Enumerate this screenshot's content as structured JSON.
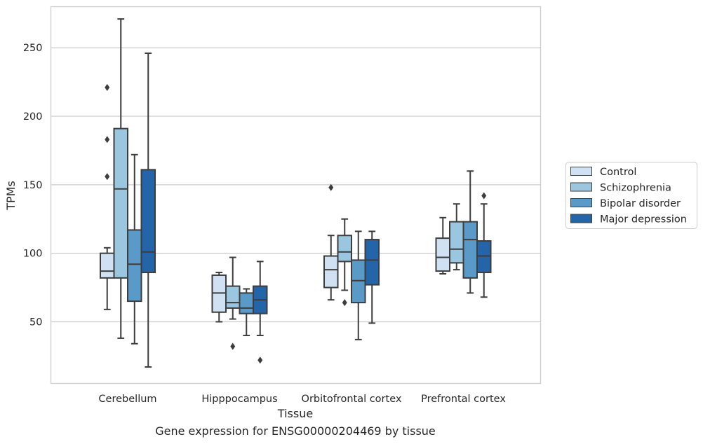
{
  "caption": "Gene expression for ENSG00000204469 by tissue",
  "chart_data": {
    "type": "box",
    "xlabel": "Tissue",
    "ylabel": "TPMs",
    "ylim": [
      5,
      280
    ],
    "yticks": [
      50,
      100,
      150,
      200,
      250
    ],
    "grid": "horizontal",
    "legend_position": "right",
    "categories": [
      "Cerebellum",
      "Hipppocampus",
      "Orbitofrontal cortex",
      "Prefrontal cortex"
    ],
    "series": [
      {
        "name": "Control",
        "color": "#cfe1f2",
        "boxes": [
          {
            "whislo": 59,
            "q1": 82,
            "med": 87,
            "q3": 100,
            "whishi": 104,
            "fliers": [
              156,
              183,
              221
            ]
          },
          {
            "whislo": 50,
            "q1": 57,
            "med": 71,
            "q3": 84,
            "whishi": 86,
            "fliers": []
          },
          {
            "whislo": 66,
            "q1": 75,
            "med": 88,
            "q3": 98,
            "whishi": 113,
            "fliers": [
              148
            ]
          },
          {
            "whislo": 85,
            "q1": 87,
            "med": 97,
            "q3": 111,
            "whishi": 126,
            "fliers": []
          }
        ]
      },
      {
        "name": "Schizophrenia",
        "color": "#9ac6e0",
        "boxes": [
          {
            "whislo": 38,
            "q1": 82,
            "med": 147,
            "q3": 191,
            "whishi": 271,
            "fliers": []
          },
          {
            "whislo": 52,
            "q1": 60,
            "med": 64,
            "q3": 76,
            "whishi": 97,
            "fliers": [
              32
            ]
          },
          {
            "whislo": 73,
            "q1": 94,
            "med": 101,
            "q3": 113,
            "whishi": 125,
            "fliers": [
              64
            ]
          },
          {
            "whislo": 88,
            "q1": 93,
            "med": 103,
            "q3": 123,
            "whishi": 136,
            "fliers": []
          }
        ]
      },
      {
        "name": "Bipolar disorder",
        "color": "#5a9ac8",
        "boxes": [
          {
            "whislo": 34,
            "q1": 65,
            "med": 92,
            "q3": 117,
            "whishi": 172,
            "fliers": []
          },
          {
            "whislo": 40,
            "q1": 56,
            "med": 60,
            "q3": 71,
            "whishi": 74,
            "fliers": []
          },
          {
            "whislo": 37,
            "q1": 64,
            "med": 80,
            "q3": 95,
            "whishi": 116,
            "fliers": []
          },
          {
            "whislo": 71,
            "q1": 82,
            "med": 110,
            "q3": 123,
            "whishi": 160,
            "fliers": []
          }
        ]
      },
      {
        "name": "Major depression",
        "color": "#2464a8",
        "boxes": [
          {
            "whislo": 17,
            "q1": 86,
            "med": 101,
            "q3": 161,
            "whishi": 246,
            "fliers": []
          },
          {
            "whislo": 40,
            "q1": 56,
            "med": 66,
            "q3": 76,
            "whishi": 94,
            "fliers": [
              22
            ]
          },
          {
            "whislo": 49,
            "q1": 77,
            "med": 95,
            "q3": 110,
            "whishi": 116,
            "fliers": []
          },
          {
            "whislo": 68,
            "q1": 86,
            "med": 98,
            "q3": 109,
            "whishi": 136,
            "fliers": [
              142
            ]
          }
        ]
      }
    ]
  }
}
